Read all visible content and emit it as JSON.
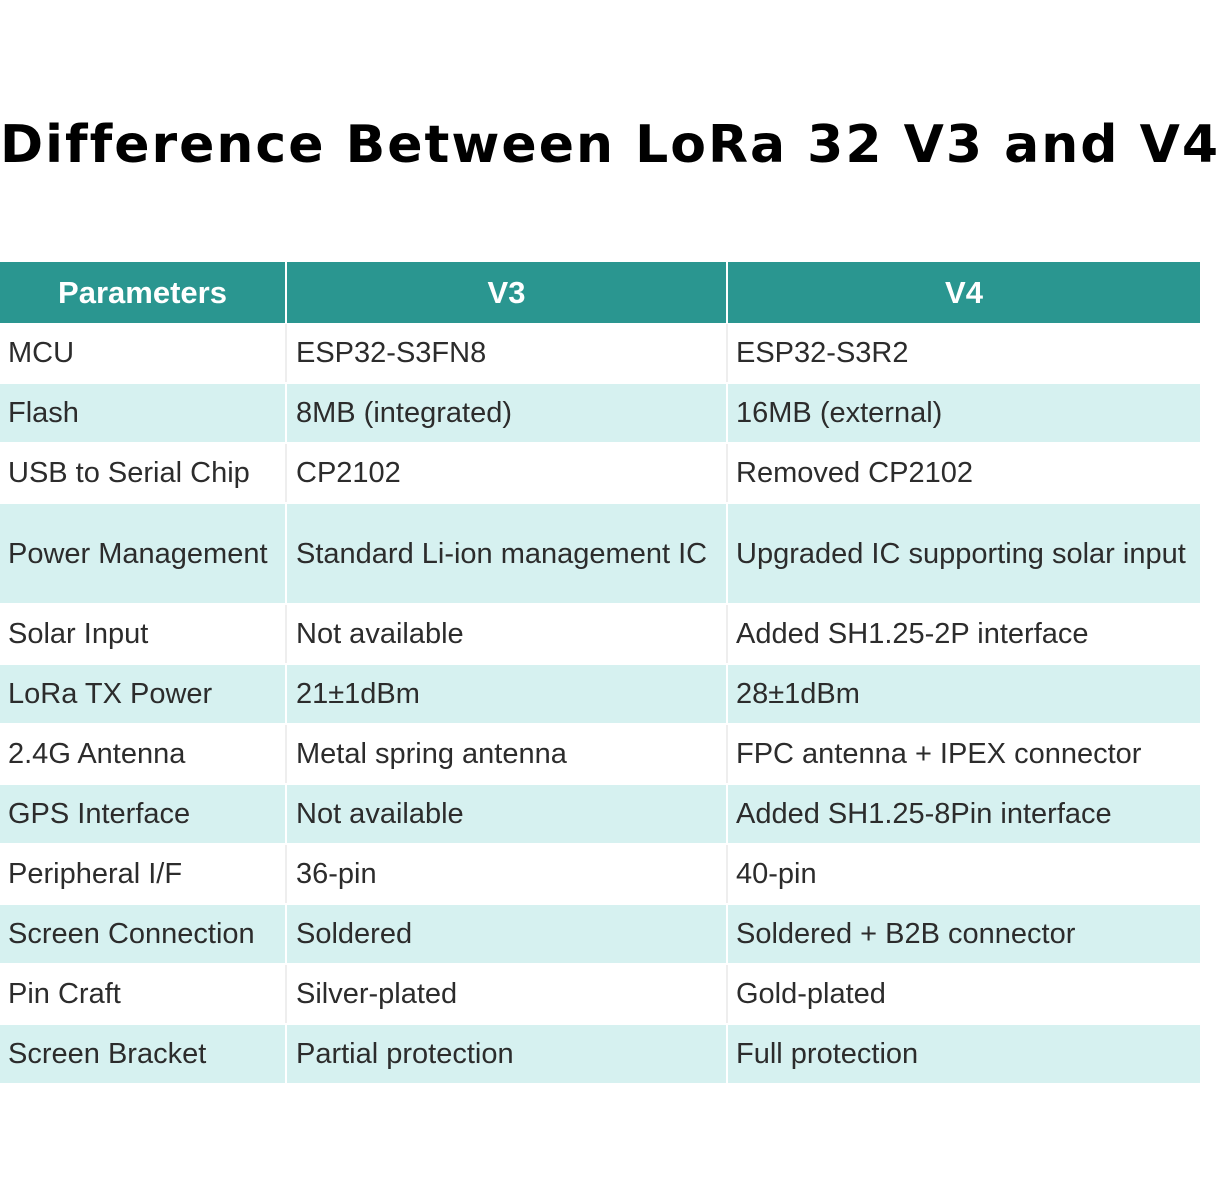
{
  "title": "Difference Between LoRa 32 V3 and V4",
  "colors": {
    "header_bg": "#2a9690",
    "header_text": "#ffffff",
    "row_alt_bg": "#d6f1f0",
    "row_bg": "#ffffff",
    "body_text": "#2c2c2c"
  },
  "table": {
    "headers": [
      "Parameters",
      "V3",
      "V4"
    ],
    "rows": [
      {
        "param": "MCU",
        "v3": "ESP32-S3FN8",
        "v4": "ESP32-S3R2"
      },
      {
        "param": "Flash",
        "v3": "8MB (integrated)",
        "v4": "16MB (external)"
      },
      {
        "param": "USB to Serial Chip",
        "v3": "CP2102",
        "v4": "Removed CP2102"
      },
      {
        "param": "Power Management",
        "v3": "Standard Li-ion management IC",
        "v4": "Upgraded IC supporting solar input"
      },
      {
        "param": "Solar Input",
        "v3": "Not available",
        "v4": "Added SH1.25-2P interface"
      },
      {
        "param": "LoRa TX Power",
        "v3": "21±1dBm",
        "v4": "28±1dBm"
      },
      {
        "param": "2.4G Antenna",
        "v3": "Metal spring antenna",
        "v4": "FPC antenna + IPEX connector"
      },
      {
        "param": "GPS Interface",
        "v3": "Not available",
        "v4": "Added SH1.25-8Pin interface"
      },
      {
        "param": "Peripheral I/F",
        "v3": "36-pin",
        "v4": "40-pin"
      },
      {
        "param": "Screen Connection",
        "v3": "Soldered",
        "v4": "Soldered + B2B connector"
      },
      {
        "param": "Pin Craft",
        "v3": "Silver-plated",
        "v4": "Gold-plated"
      },
      {
        "param": "Screen Bracket",
        "v3": "Partial protection",
        "v4": "Full protection"
      }
    ]
  }
}
